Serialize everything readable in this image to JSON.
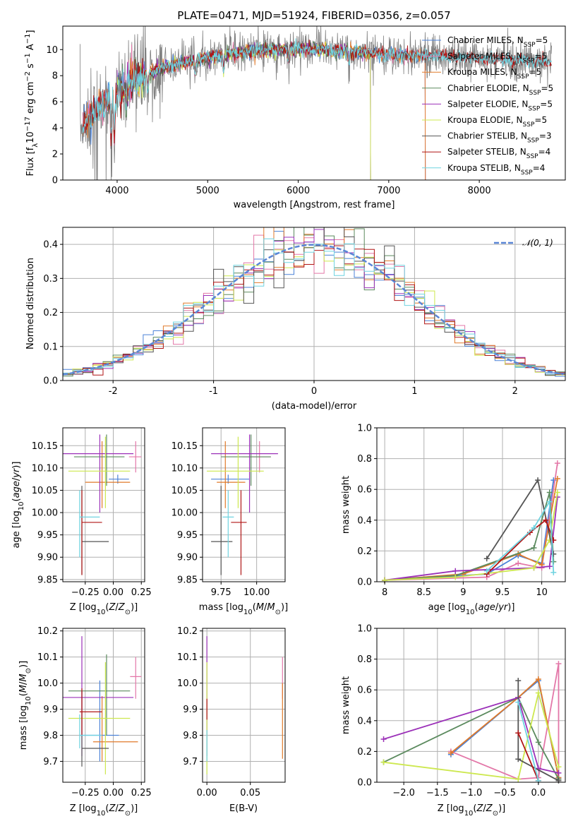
{
  "colors": {
    "chabrier_miles": "#4b82d8",
    "salpeter_miles": "#e377a8",
    "kroupa_miles": "#e07a2a",
    "chabrier_elodie": "#5b8a5e",
    "salpeter_elodie": "#9b30b8",
    "kroupa_elodie": "#cde84f",
    "chabrier_stelib": "#555555",
    "salpeter_stelib": "#b01515",
    "kroupa_stelib": "#6fd3e0",
    "gauss": "#5a86d6"
  },
  "chart_data": [
    {
      "type": "line",
      "title": "PLATE=0471, MJD=51924, FIBERID=0356, z=0.057",
      "xlabel": "wavelength [Angstrom, rest frame]",
      "ylabel": "Flux [f_λ 10^-17 erg cm^-2 s^-1 A^-1]",
      "xlim": [
        3400,
        8950
      ],
      "ylim": [
        0,
        11.8
      ],
      "xticks": [
        4000,
        5000,
        6000,
        7000,
        8000
      ],
      "yticks": [
        0,
        2,
        4,
        6,
        8,
        10
      ],
      "grid": false,
      "legend_position": "top-right",
      "legend": [
        "Chabrier MILES, N_SSP=5",
        "Salpeter MILES, N_SSP=5",
        "Kroupa MILES, N_SSP=5",
        "Chabrier ELODIE, N_SSP=5",
        "Salpeter ELODIE, N_SSP=5",
        "Kroupa ELODIE, N_SSP=5",
        "Chabrier STELIB, N_SSP=3",
        "Salpeter STELIB, N_SSP=4",
        "Kroupa STELIB, N_SSP=4"
      ],
      "continuum": {
        "x": [
          3600,
          3800,
          4000,
          4200,
          4500,
          5000,
          5500,
          6000,
          6500,
          7000,
          7500,
          8000,
          8500,
          8800
        ],
        "y": [
          4.2,
          5.6,
          6.8,
          7.8,
          8.6,
          9.4,
          9.9,
          10.1,
          9.9,
          9.6,
          9.5,
          9.3,
          9.2,
          9.0
        ]
      }
    },
    {
      "type": "line",
      "xlabel": "(data-model)/error",
      "ylabel": "Normed distribution",
      "xlim": [
        -2.5,
        2.5
      ],
      "ylim": [
        0,
        0.45
      ],
      "xticks": [
        -2,
        -1,
        0,
        1,
        2
      ],
      "yticks": [
        0.0,
        0.1,
        0.2,
        0.3,
        0.4
      ],
      "grid": true,
      "legend_position": "top-right",
      "legend": [
        "N(0, 1)"
      ],
      "bin_width": 0.1
    },
    {
      "type": "scatter",
      "xlabel": "Z [log10(Z/Z⊙)]",
      "ylabel": "age  [log10(age/yr)]",
      "xlim": [
        -0.45,
        0.28
      ],
      "ylim": [
        9.845,
        10.19
      ],
      "xticks": [
        -0.25,
        0.0,
        0.25
      ],
      "xticklabels": [
        "−0.25",
        "0.00",
        "0.25"
      ],
      "yticks": [
        9.85,
        9.9,
        9.95,
        10.0,
        10.05,
        10.1,
        10.15
      ],
      "grid": true,
      "points": [
        {
          "c": "chabrier_miles",
          "x": 0.04,
          "xe": [
            -0.04,
            0.14
          ],
          "y": 10.075,
          "ye": [
            10.065,
            10.085
          ]
        },
        {
          "c": "salpeter_miles",
          "x": 0.2,
          "xe": [
            0.14,
            0.25
          ],
          "y": 10.125,
          "ye": [
            10.09,
            10.16
          ]
        },
        {
          "c": "kroupa_miles",
          "x": -0.1,
          "xe": [
            -0.25,
            0.15
          ],
          "y": 10.068,
          "ye": [
            10.01,
            10.16
          ]
        },
        {
          "c": "chabrier_elodie",
          "x": -0.06,
          "xe": [
            -0.35,
            0.1
          ],
          "y": 10.125,
          "ye": [
            10.06,
            10.175
          ]
        },
        {
          "c": "salpeter_elodie",
          "x": -0.12,
          "xe": [
            -0.45,
            0.18
          ],
          "y": 10.132,
          "ye": [
            10.0,
            10.175
          ]
        },
        {
          "c": "kroupa_elodie",
          "x": -0.07,
          "xe": [
            -0.4,
            0.15
          ],
          "y": 10.093,
          "ye": [
            10.01,
            10.17
          ]
        },
        {
          "c": "chabrier_stelib",
          "x": -0.28,
          "xe": [
            -0.28,
            -0.04
          ],
          "y": 9.935,
          "ye": [
            9.86,
            10.06
          ]
        },
        {
          "c": "salpeter_stelib",
          "x": -0.28,
          "xe": [
            -0.28,
            -0.1
          ],
          "y": 9.978,
          "ye": [
            9.86,
            10.05
          ]
        },
        {
          "c": "kroupa_stelib",
          "x": -0.3,
          "xe": [
            -0.3,
            -0.12
          ],
          "y": 9.99,
          "ye": [
            9.9,
            10.05
          ]
        }
      ]
    },
    {
      "type": "scatter",
      "xlabel": "mass [log10(M/M⊙)]",
      "ylabel": "",
      "xlim": [
        9.62,
        10.2
      ],
      "ylim": [
        9.845,
        10.19
      ],
      "xticks": [
        9.75,
        10.0
      ],
      "xticklabels": [
        "9.75",
        "10.00"
      ],
      "yticks": [
        9.85,
        9.9,
        9.95,
        10.0,
        10.05,
        10.1,
        10.15
      ],
      "grid": true,
      "points": [
        {
          "c": "chabrier_miles",
          "x": 9.8,
          "xe": [
            9.68,
            9.95
          ],
          "y": 10.075,
          "ye": [
            10.065,
            10.085
          ]
        },
        {
          "c": "salpeter_miles",
          "x": 10.02,
          "xe": [
            9.9,
            10.1
          ],
          "y": 10.125,
          "ye": [
            10.09,
            10.16
          ]
        },
        {
          "c": "kroupa_miles",
          "x": 9.78,
          "xe": [
            9.72,
            9.92
          ],
          "y": 10.068,
          "ye": [
            10.01,
            10.16
          ]
        },
        {
          "c": "chabrier_elodie",
          "x": 9.96,
          "xe": [
            9.75,
            10.1
          ],
          "y": 10.125,
          "ye": [
            10.06,
            10.175
          ]
        },
        {
          "c": "salpeter_elodie",
          "x": 9.95,
          "xe": [
            9.68,
            10.15
          ],
          "y": 10.132,
          "ye": [
            10.0,
            10.175
          ]
        },
        {
          "c": "kroupa_elodie",
          "x": 9.87,
          "xe": [
            9.65,
            10.05
          ],
          "y": 10.093,
          "ye": [
            10.01,
            10.17
          ]
        },
        {
          "c": "chabrier_stelib",
          "x": 9.75,
          "xe": [
            9.68,
            9.83
          ],
          "y": 9.935,
          "ye": [
            9.86,
            10.06
          ]
        },
        {
          "c": "salpeter_stelib",
          "x": 9.89,
          "xe": [
            9.82,
            9.93
          ],
          "y": 9.978,
          "ye": [
            9.86,
            10.05
          ]
        },
        {
          "c": "kroupa_stelib",
          "x": 9.8,
          "xe": [
            9.76,
            9.84
          ],
          "y": 9.99,
          "ye": [
            9.9,
            10.05
          ]
        }
      ]
    },
    {
      "type": "line",
      "xlabel": "age  [log10(age/yr)]",
      "ylabel": "mass weight",
      "xlim": [
        7.9,
        10.3
      ],
      "ylim": [
        0,
        1.0
      ],
      "xticks": [
        8.0,
        8.5,
        9.0,
        9.5,
        10.0
      ],
      "yticks": [
        0.0,
        0.2,
        0.4,
        0.6,
        0.8,
        1.0
      ],
      "grid": true,
      "series": [
        {
          "c": "chabrier_miles",
          "x": [
            8.0,
            9.3,
            9.7,
            10.0,
            10.15
          ],
          "y": [
            0.01,
            0.05,
            0.17,
            0.12,
            0.66
          ]
        },
        {
          "c": "salpeter_miles",
          "x": [
            8.0,
            9.3,
            9.7,
            10.0,
            10.2
          ],
          "y": [
            0.01,
            0.03,
            0.12,
            0.09,
            0.77
          ]
        },
        {
          "c": "kroupa_miles",
          "x": [
            8.0,
            9.0,
            9.7,
            10.0,
            10.2
          ],
          "y": [
            0.01,
            0.05,
            0.18,
            0.11,
            0.67
          ]
        },
        {
          "c": "chabrier_elodie",
          "x": [
            8.0,
            8.9,
            9.9,
            10.1,
            10.15
          ],
          "y": [
            0.01,
            0.04,
            0.22,
            0.58,
            0.13
          ]
        },
        {
          "c": "salpeter_elodie",
          "x": [
            8.0,
            8.9,
            9.9,
            10.1,
            10.2
          ],
          "y": [
            0.01,
            0.07,
            0.09,
            0.1,
            0.55
          ]
        },
        {
          "c": "kroupa_elodie",
          "x": [
            8.0,
            8.9,
            9.9,
            10.1,
            10.2
          ],
          "y": [
            0.01,
            0.03,
            0.09,
            0.27,
            0.58
          ]
        },
        {
          "c": "chabrier_stelib",
          "x": [
            9.3,
            9.95,
            10.15
          ],
          "y": [
            0.15,
            0.66,
            0.18
          ]
        },
        {
          "c": "salpeter_stelib",
          "x": [
            9.3,
            9.85,
            10.05,
            10.15
          ],
          "y": [
            0.05,
            0.32,
            0.4,
            0.27
          ]
        },
        {
          "c": "kroupa_stelib",
          "x": [
            9.3,
            9.9,
            10.1,
            10.15
          ],
          "y": [
            0.07,
            0.35,
            0.52,
            0.06
          ]
        }
      ]
    },
    {
      "type": "scatter",
      "xlabel": "Z [log10(Z/Z⊙)]",
      "ylabel": "mass [log10(M/M⊙)]",
      "xlim": [
        -0.45,
        0.28
      ],
      "ylim": [
        9.62,
        10.21
      ],
      "xticks": [
        -0.25,
        0.0,
        0.25
      ],
      "xticklabels": [
        "−0.25",
        "0.00",
        "0.25"
      ],
      "yticks": [
        9.7,
        9.8,
        9.9,
        10.0,
        10.1,
        10.2
      ],
      "grid": true,
      "points": [
        {
          "c": "chabrier_miles",
          "x": -0.12,
          "xe": [
            -0.3,
            0.05
          ],
          "y": 9.8,
          "ye": [
            9.7,
            10.01
          ]
        },
        {
          "c": "salpeter_miles",
          "x": 0.2,
          "xe": [
            0.15,
            0.25
          ],
          "y": 10.025,
          "ye": [
            9.94,
            10.1
          ]
        },
        {
          "c": "kroupa_miles",
          "x": -0.1,
          "xe": [
            -0.18,
            0.22
          ],
          "y": 9.775,
          "ye": [
            9.7,
            9.95
          ]
        },
        {
          "c": "chabrier_elodie",
          "x": -0.06,
          "xe": [
            -0.4,
            0.15
          ],
          "y": 9.97,
          "ye": [
            9.8,
            10.11
          ]
        },
        {
          "c": "salpeter_elodie",
          "x": -0.28,
          "xe": [
            -0.45,
            0.18
          ],
          "y": 9.945,
          "ye": [
            9.72,
            10.18
          ]
        },
        {
          "c": "kroupa_elodie",
          "x": -0.07,
          "xe": [
            -0.4,
            0.15
          ],
          "y": 9.865,
          "ye": [
            9.65,
            10.08
          ]
        },
        {
          "c": "chabrier_stelib",
          "x": -0.28,
          "xe": [
            -0.28,
            -0.04
          ],
          "y": 9.75,
          "ye": [
            9.68,
            9.97
          ]
        },
        {
          "c": "salpeter_stelib",
          "x": -0.28,
          "xe": [
            -0.3,
            -0.1
          ],
          "y": 9.89,
          "ye": [
            9.8,
            9.98
          ]
        },
        {
          "c": "kroupa_stelib",
          "x": -0.3,
          "xe": [
            -0.3,
            -0.1
          ],
          "y": 9.8,
          "ye": [
            9.75,
            9.88
          ]
        }
      ]
    },
    {
      "type": "scatter",
      "xlabel": "E(B-V)",
      "ylabel": "",
      "xlim": [
        -0.005,
        0.09
      ],
      "ylim": [
        9.62,
        10.21
      ],
      "xticks": [
        0.0,
        0.05
      ],
      "xticklabels": [
        "0.00",
        "0.05"
      ],
      "yticks": [
        9.7,
        9.8,
        9.9,
        10.0,
        10.1,
        10.2
      ],
      "grid": true,
      "points": [
        {
          "c": "salpeter_miles",
          "x": 0.087,
          "xe": [
            0.087,
            0.087
          ],
          "y": 10.025,
          "ye": [
            9.94,
            10.1
          ]
        },
        {
          "c": "kroupa_miles",
          "x": 0.087,
          "xe": [
            0.087,
            0.087
          ],
          "y": 9.8,
          "ye": [
            9.71,
            10.0
          ]
        },
        {
          "c": "salpeter_elodie",
          "x": 0.0,
          "xe": [
            0.0,
            0.0
          ],
          "y": 9.945,
          "ye": [
            9.72,
            10.18
          ]
        },
        {
          "c": "kroupa_elodie",
          "x": 0.0,
          "xe": [
            0.0,
            0.0
          ],
          "y": 9.865,
          "ye": [
            9.65,
            10.08
          ]
        },
        {
          "c": "salpeter_stelib",
          "x": 0.0,
          "xe": [
            0.0,
            0.0
          ],
          "y": 9.89,
          "ye": [
            9.86,
            9.94
          ]
        },
        {
          "c": "kroupa_stelib",
          "x": 0.0,
          "xe": [
            0.0,
            0.0
          ],
          "y": 9.75,
          "ye": [
            9.7,
            9.82
          ]
        }
      ]
    },
    {
      "type": "line",
      "xlabel": "Z [log10(Z/Z⊙)]",
      "ylabel": "mass weight",
      "xlim": [
        -2.4,
        0.4
      ],
      "ylim": [
        0,
        1.0
      ],
      "xticks": [
        -2.0,
        -1.5,
        -1.0,
        -0.5,
        0.0
      ],
      "xticklabels": [
        "−2.0",
        "−1.5",
        "−1.0",
        "−0.5",
        "0.0"
      ],
      "yticks": [
        0.0,
        0.2,
        0.4,
        0.6,
        0.8,
        1.0
      ],
      "grid": true,
      "series": [
        {
          "c": "chabrier_miles",
          "x": [
            -1.3,
            -0.3,
            0.0,
            0.3
          ],
          "y": [
            0.18,
            0.55,
            0.66,
            0.03
          ]
        },
        {
          "c": "salpeter_miles",
          "x": [
            -1.3,
            -0.3,
            0.0,
            0.3,
            0.3
          ],
          "y": [
            0.2,
            0.02,
            0.03,
            0.77,
            0.02
          ]
        },
        {
          "c": "kroupa_miles",
          "x": [
            -1.3,
            -0.3,
            0.0,
            0.3
          ],
          "y": [
            0.19,
            0.55,
            0.67,
            0.03
          ]
        },
        {
          "c": "chabrier_elodie",
          "x": [
            -2.3,
            -0.3,
            0.0,
            0.3
          ],
          "y": [
            0.13,
            0.55,
            0.26,
            0.02
          ]
        },
        {
          "c": "salpeter_elodie",
          "x": [
            -2.3,
            -0.3,
            0.0,
            0.3
          ],
          "y": [
            0.28,
            0.55,
            0.09,
            0.06
          ]
        },
        {
          "c": "kroupa_elodie",
          "x": [
            -2.3,
            -0.3,
            0.0,
            0.3
          ],
          "y": [
            0.13,
            0.02,
            0.58,
            0.1
          ]
        },
        {
          "c": "chabrier_stelib",
          "x": [
            -0.3,
            -0.3,
            0.3
          ],
          "y": [
            0.66,
            0.15,
            0.01
          ]
        },
        {
          "c": "salpeter_stelib",
          "x": [
            -0.3,
            0.0
          ],
          "y": [
            0.32,
            0.01
          ]
        },
        {
          "c": "kroupa_stelib",
          "x": [
            -0.3,
            0.0
          ],
          "y": [
            0.52,
            0.01
          ]
        }
      ]
    }
  ]
}
